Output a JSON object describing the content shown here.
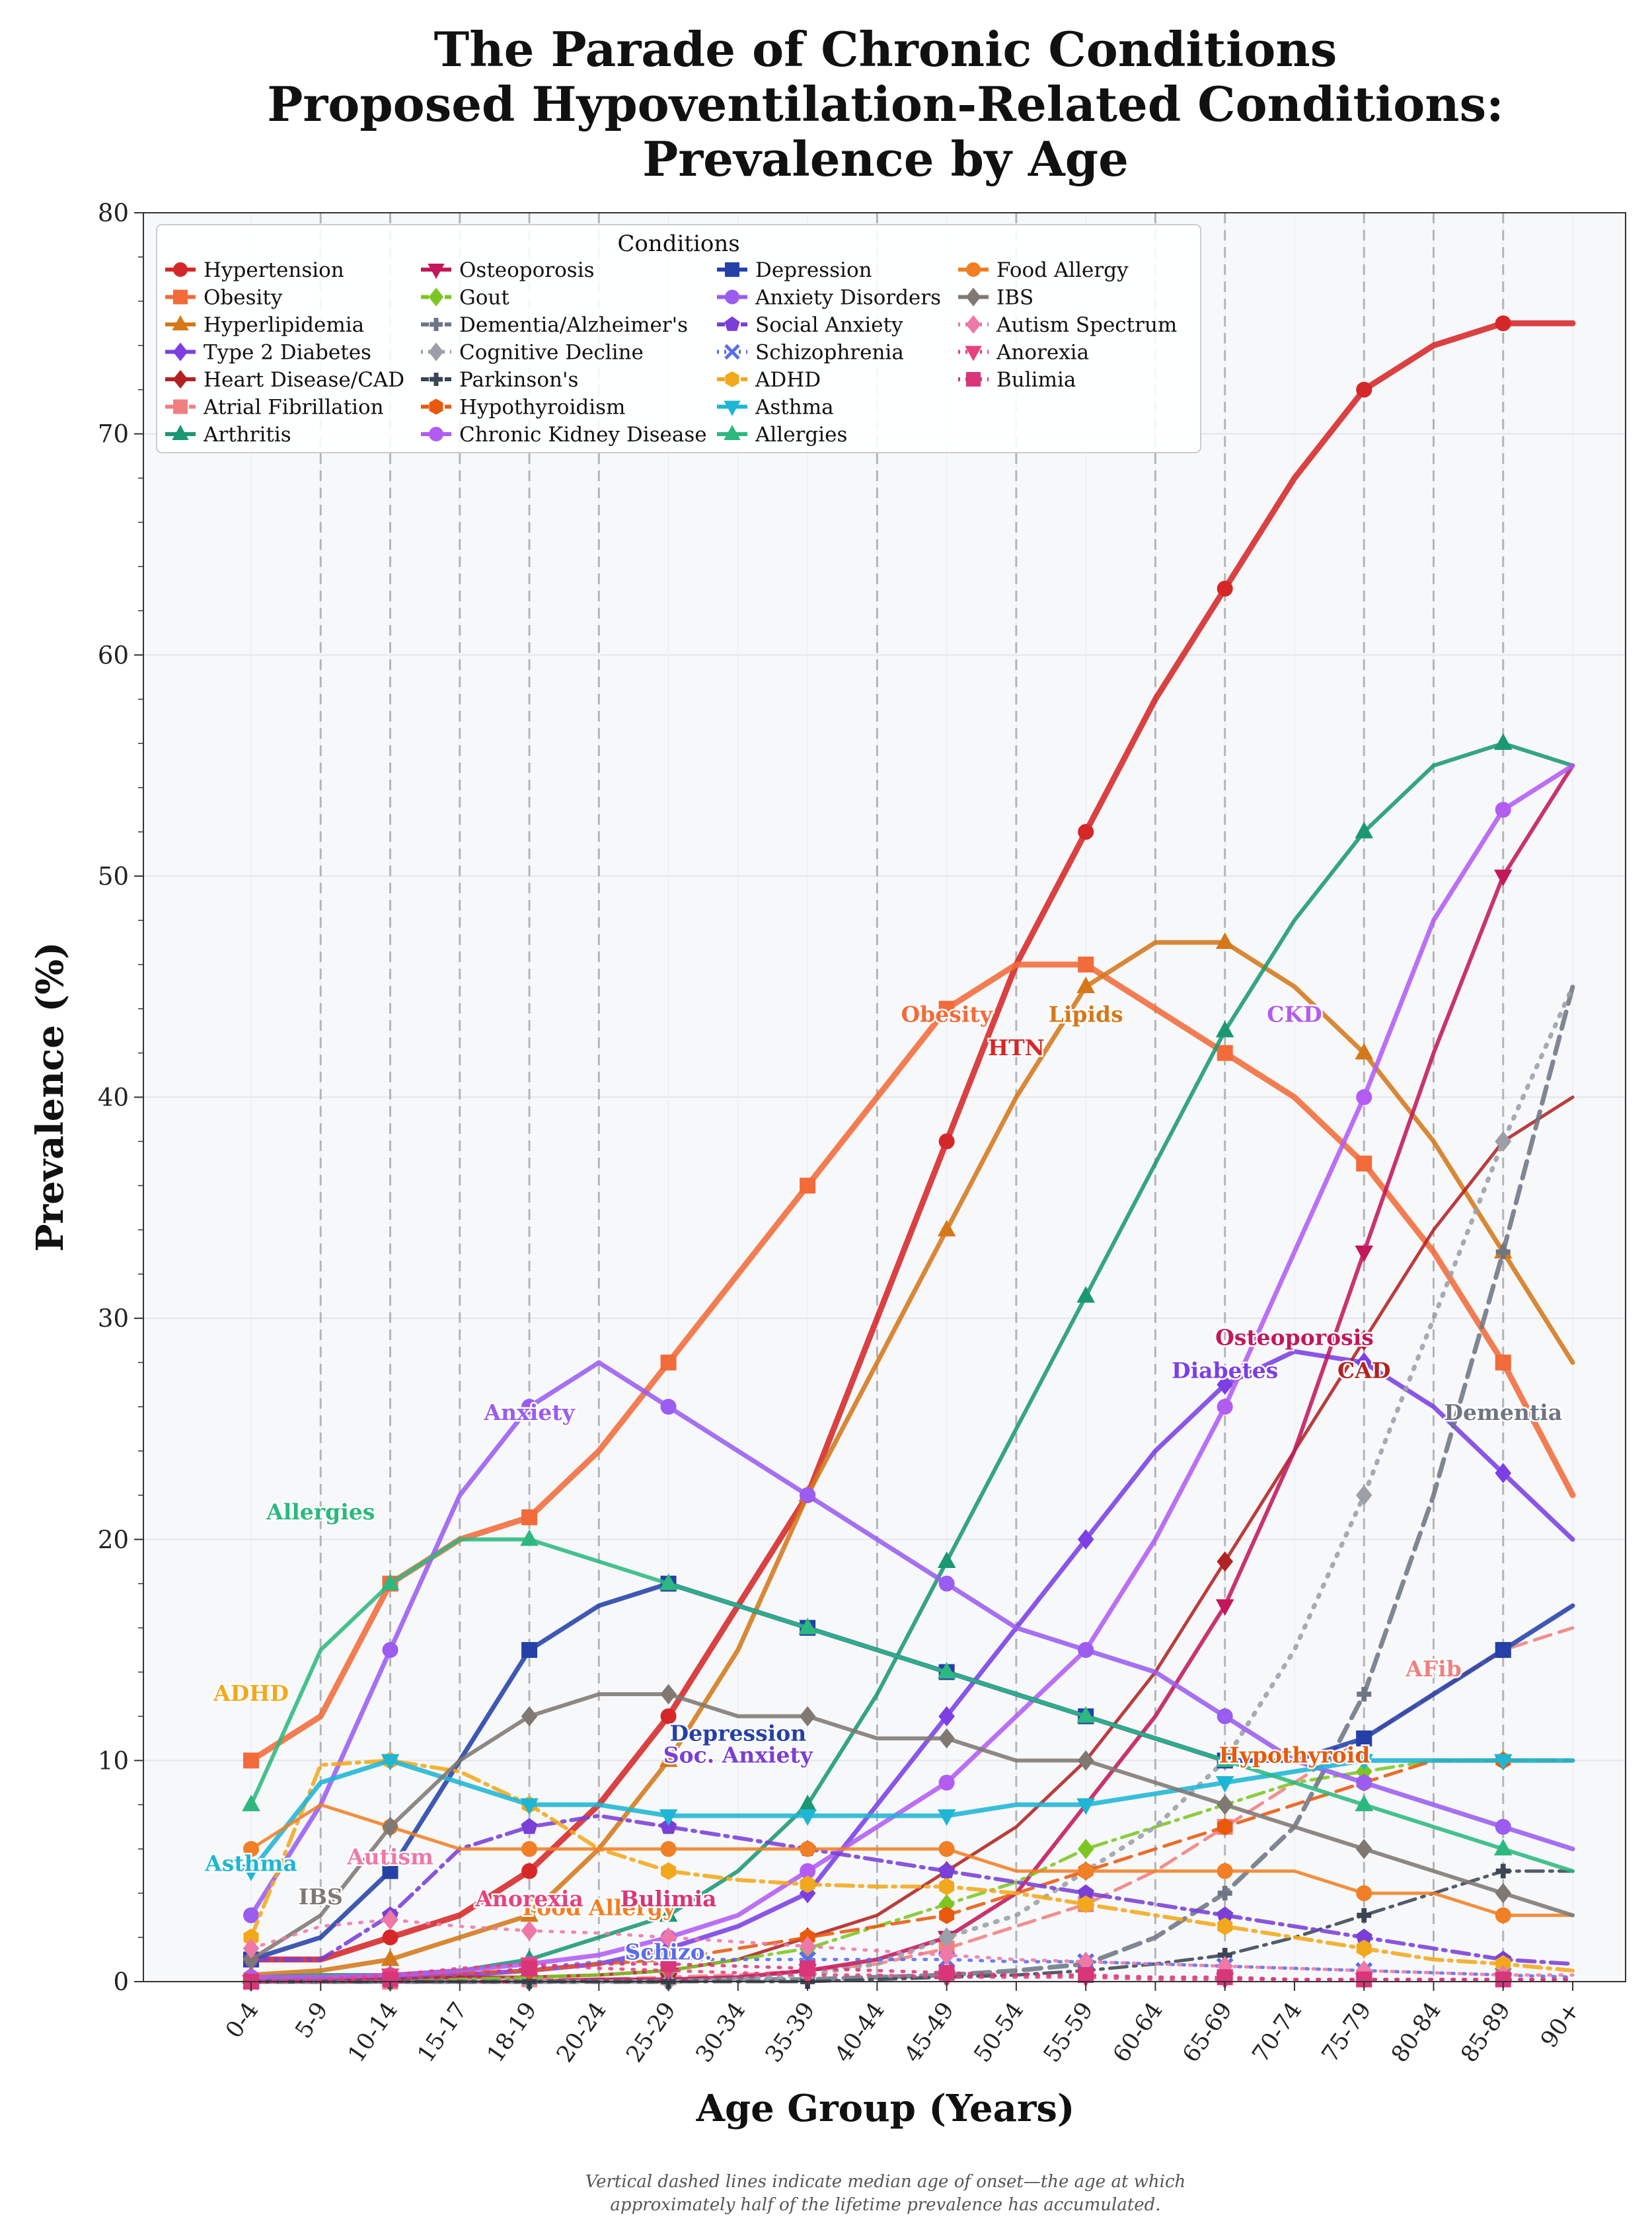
{
  "chart_data": {
    "type": "line",
    "title": [
      "The Parade of Chronic Conditions",
      "Proposed Hypoventilation-Related Conditions:",
      "Prevalence by Age"
    ],
    "xlabel": "Age Group (Years)",
    "ylabel": "Prevalence (%)",
    "ylim": [
      0,
      80
    ],
    "yticks": [
      0,
      10,
      20,
      30,
      40,
      50,
      60,
      70,
      80
    ],
    "grid": true,
    "legend_title": "Conditions",
    "legend_position": "top-left",
    "categories": [
      "0-4",
      "5-9",
      "10-14",
      "15-17",
      "18-19",
      "20-24",
      "25-29",
      "30-34",
      "35-39",
      "40-44",
      "45-49",
      "50-54",
      "55-59",
      "60-64",
      "65-69",
      "70-74",
      "75-79",
      "80-84",
      "85-89",
      "90+"
    ],
    "onset_lines": [
      "5-9",
      "10-14",
      "15-17",
      "18-19",
      "20-24",
      "40-44",
      "50-54",
      "60-64",
      "65-69",
      "75-79",
      "80-84",
      "85-89"
    ],
    "footnote": [
      "Vertical dashed lines indicate median age of onset—the age at which",
      "approximately half of the lifetime prevalence has accumulated."
    ],
    "series": [
      {
        "name": "Hypertension",
        "color": "#d62728",
        "marker": "circle",
        "dash": "solid",
        "width": 9,
        "values": [
          1,
          1,
          2,
          3,
          5,
          8,
          12,
          17,
          22,
          30,
          38,
          46,
          52,
          58,
          63,
          68,
          72,
          74,
          75,
          75
        ]
      },
      {
        "name": "Obesity",
        "color": "#f26b3a",
        "marker": "square",
        "dash": "solid",
        "width": 9,
        "values": [
          10,
          12,
          18,
          20,
          21,
          24,
          28,
          32,
          36,
          40,
          44,
          46,
          46,
          44,
          42,
          40,
          37,
          33,
          28,
          22
        ]
      },
      {
        "name": "Hyperlipidemia",
        "color": "#d4781a",
        "marker": "triangle-up",
        "dash": "solid",
        "width": 7,
        "values": [
          0.3,
          0.5,
          1,
          2,
          3,
          6,
          10,
          15,
          22,
          28,
          34,
          40,
          45,
          47,
          47,
          45,
          42,
          38,
          33,
          28
        ]
      },
      {
        "name": "Type 2 Diabetes",
        "color": "#7b3fe4",
        "marker": "diamond",
        "dash": "solid",
        "width": 7,
        "values": [
          0.1,
          0.2,
          0.2,
          0.3,
          0.5,
          0.8,
          1.5,
          2.5,
          4,
          8,
          12,
          16,
          20,
          24,
          27,
          28.5,
          28,
          26,
          23,
          20
        ]
      },
      {
        "name": "Heart Disease/CAD",
        "color": "#b22222",
        "marker": "diamond",
        "dash": "solid",
        "width": 5,
        "values": [
          0.1,
          0.1,
          0.1,
          0.2,
          0.2,
          0.3,
          0.5,
          1,
          2,
          3,
          5,
          7,
          10,
          14,
          19,
          24,
          29,
          34,
          38,
          40
        ]
      },
      {
        "name": "Atrial Fibrillation",
        "color": "#f08080",
        "marker": "square",
        "dash": "dashed",
        "width": 5,
        "values": [
          0,
          0,
          0,
          0,
          0.1,
          0.1,
          0.2,
          0.3,
          0.5,
          0.8,
          1.5,
          2.5,
          3.5,
          5,
          7,
          9,
          11,
          13,
          15,
          16
        ]
      },
      {
        "name": "Arthritis",
        "color": "#1a9873",
        "marker": "triangle-up",
        "dash": "solid",
        "width": 6,
        "values": [
          0.2,
          0.3,
          0.3,
          0.5,
          1,
          2,
          3,
          5,
          8,
          13,
          19,
          25,
          31,
          37,
          43,
          48,
          52,
          55,
          56,
          55
        ]
      },
      {
        "name": "Osteoporosis",
        "color": "#c2185b",
        "marker": "triangle-down",
        "dash": "solid",
        "width": 6,
        "values": [
          0,
          0,
          0,
          0,
          0,
          0.1,
          0.1,
          0.2,
          0.5,
          1,
          2,
          4,
          8,
          12,
          17,
          24,
          33,
          42,
          50,
          55
        ]
      },
      {
        "name": "Gout",
        "color": "#7cc622",
        "marker": "diamond",
        "dash": "dashdot",
        "width": 5,
        "values": [
          0,
          0,
          0,
          0.1,
          0.2,
          0.3,
          0.5,
          1,
          1.5,
          2.5,
          3.5,
          4.5,
          6,
          7,
          8,
          9,
          9.5,
          10,
          10,
          10
        ]
      },
      {
        "name": "Dementia/Alzheimer's",
        "color": "#6e7585",
        "marker": "plus",
        "dash": "dashed",
        "width": 7,
        "values": [
          0,
          0,
          0,
          0,
          0,
          0,
          0,
          0.1,
          0.1,
          0.2,
          0.3,
          0.5,
          0.8,
          2,
          4,
          7,
          13,
          22,
          33,
          45
        ]
      },
      {
        "name": "Cognitive Decline",
        "color": "#9a9fa8",
        "marker": "diamond",
        "dash": "dotted",
        "width": 7,
        "values": [
          0,
          0,
          0,
          0,
          0,
          0,
          0,
          0.1,
          0.3,
          0.8,
          2,
          3,
          5,
          7,
          10,
          15,
          22,
          30,
          38,
          45
        ]
      },
      {
        "name": "Parkinson's",
        "color": "#3c4554",
        "marker": "plus",
        "dash": "dashdot",
        "width": 5,
        "values": [
          0,
          0,
          0,
          0,
          0,
          0,
          0,
          0,
          0,
          0.1,
          0.2,
          0.3,
          0.5,
          0.8,
          1.2,
          2,
          3,
          4,
          5,
          5
        ]
      },
      {
        "name": "Hypothyroidism",
        "color": "#e8590c",
        "marker": "hexagon",
        "dash": "dashed",
        "width": 5,
        "values": [
          0.2,
          0.2,
          0.3,
          0.4,
          0.5,
          0.8,
          1,
          1.5,
          2,
          2.5,
          3,
          4,
          5,
          6,
          7,
          8,
          9,
          10,
          10,
          10
        ]
      },
      {
        "name": "Chronic Kidney Disease",
        "color": "#b25cf2",
        "marker": "circle",
        "dash": "solid",
        "width": 7,
        "values": [
          0.2,
          0.2,
          0.3,
          0.5,
          0.8,
          1.2,
          2,
          3,
          5,
          7,
          9,
          12,
          15,
          20,
          26,
          33,
          40,
          48,
          53,
          55
        ]
      },
      {
        "name": "Depression",
        "color": "#2541a8",
        "marker": "square",
        "dash": "solid",
        "width": 7,
        "values": [
          1,
          2,
          5,
          10,
          15,
          17,
          18,
          17,
          16,
          15,
          14,
          13,
          12,
          11,
          10,
          10,
          11,
          13,
          15,
          17
        ]
      },
      {
        "name": "Anxiety Disorders",
        "color": "#9b5cf0",
        "marker": "circle",
        "dash": "solid",
        "width": 7,
        "values": [
          3,
          8,
          15,
          22,
          26,
          28,
          26,
          24,
          22,
          20,
          18,
          16,
          15,
          14,
          12,
          10,
          9,
          8,
          7,
          6
        ]
      },
      {
        "name": "Social Anxiety",
        "color": "#7a3fd6",
        "marker": "pentagon",
        "dash": "dashdot",
        "width": 6,
        "values": [
          1,
          1,
          3,
          6,
          7,
          7.5,
          7,
          6.5,
          6,
          5.5,
          5,
          4.5,
          4,
          3.5,
          3,
          2.5,
          2,
          1.5,
          1,
          0.8
        ]
      },
      {
        "name": "Schizophrenia",
        "color": "#5a6ee8",
        "marker": "x",
        "dash": "dotted",
        "width": 5,
        "values": [
          0,
          0,
          0.1,
          0.3,
          0.6,
          0.9,
          1,
          1,
          1,
          1,
          1,
          0.9,
          0.9,
          0.8,
          0.7,
          0.6,
          0.5,
          0.4,
          0.3,
          0.2
        ]
      },
      {
        "name": "ADHD",
        "color": "#f2a81d",
        "marker": "hexagon",
        "dash": "dashdot",
        "width": 6,
        "values": [
          2,
          9.8,
          10,
          9.5,
          8,
          6,
          5,
          4.6,
          4.4,
          4.3,
          4.3,
          4,
          3.5,
          3,
          2.5,
          2,
          1.5,
          1,
          0.8,
          0.5
        ]
      },
      {
        "name": "Asthma",
        "color": "#1fb5d4",
        "marker": "triangle-down",
        "dash": "solid",
        "width": 7,
        "values": [
          5,
          9,
          10,
          9,
          8,
          8,
          7.5,
          7.5,
          7.5,
          7.5,
          7.5,
          8,
          8,
          8.5,
          9,
          9.5,
          10,
          10,
          10,
          10
        ]
      },
      {
        "name": "Allergies",
        "color": "#2cb87f",
        "marker": "triangle-up",
        "dash": "solid",
        "width": 6,
        "values": [
          8,
          15,
          18,
          20,
          20,
          19,
          18,
          17,
          16,
          15,
          14,
          13,
          12,
          11,
          10,
          9,
          8,
          7,
          6,
          5
        ]
      },
      {
        "name": "Food Allergy",
        "color": "#f07f25",
        "marker": "circle",
        "dash": "solid",
        "width": 5,
        "values": [
          6,
          8,
          7,
          6,
          6,
          6,
          6,
          6,
          6,
          6,
          6,
          5,
          5,
          5,
          5,
          5,
          4,
          4,
          3,
          3
        ]
      },
      {
        "name": "IBS",
        "color": "#7f7873",
        "marker": "diamond",
        "dash": "solid",
        "width": 6,
        "values": [
          1,
          3,
          7,
          10,
          12,
          13,
          13,
          12,
          12,
          11,
          11,
          10,
          10,
          9,
          8,
          7,
          6,
          5,
          4,
          3
        ]
      },
      {
        "name": "Autism Spectrum",
        "color": "#ee78a8",
        "marker": "diamond",
        "dash": "dotted",
        "width": 5,
        "values": [
          1.5,
          2.5,
          2.8,
          2.5,
          2.3,
          2.2,
          2,
          1.8,
          1.6,
          1.4,
          1.2,
          1,
          0.9,
          0.8,
          0.7,
          0.6,
          0.5,
          0.4,
          0.3,
          0.3
        ]
      },
      {
        "name": "Anorexia",
        "color": "#e6427d",
        "marker": "triangle-down",
        "dash": "dotted",
        "width": 5,
        "values": [
          0,
          0.1,
          0.3,
          0.6,
          0.8,
          0.6,
          0.5,
          0.4,
          0.3,
          0.3,
          0.2,
          0.2,
          0.2,
          0.1,
          0.1,
          0.1,
          0.1,
          0.1,
          0.1,
          0.1
        ]
      },
      {
        "name": "Bulimia",
        "color": "#d83679",
        "marker": "square",
        "dash": "dotted",
        "width": 5,
        "values": [
          0,
          0,
          0.1,
          0.3,
          0.6,
          0.8,
          0.8,
          0.7,
          0.6,
          0.5,
          0.4,
          0.3,
          0.3,
          0.2,
          0.2,
          0.1,
          0.1,
          0.1,
          0.1,
          0.1
        ]
      }
    ],
    "annotations": [
      {
        "text": "Obesity",
        "color": "#f26b3a",
        "x": "45-49",
        "y": 43.4
      },
      {
        "text": "HTN",
        "color": "#d62728",
        "x": "50-54",
        "y": 41.9
      },
      {
        "text": "Lipids",
        "color": "#d4781a",
        "x": "55-59",
        "y": 43.4
      },
      {
        "text": "CKD",
        "color": "#b25cf2",
        "x": "70-74",
        "y": 43.4
      },
      {
        "text": "Osteoporosis",
        "color": "#c2185b",
        "x": "70-74",
        "y": 28.8
      },
      {
        "text": "Diabetes",
        "color": "#7b3fe4",
        "x": "65-69",
        "y": 27.3
      },
      {
        "text": "CAD",
        "color": "#b22222",
        "x": "75-79",
        "y": 27.3
      },
      {
        "text": "Dementia",
        "color": "#6e7585",
        "x": "85-89",
        "y": 25.4
      },
      {
        "text": "Anxiety",
        "color": "#9b5cf0",
        "x": "18-19",
        "y": 25.4
      },
      {
        "text": "Allergies",
        "color": "#2cb87f",
        "x": "5-9",
        "y": 20.9
      },
      {
        "text": "ADHD",
        "color": "#f2a81d",
        "x": "0-4",
        "y": 12.7
      },
      {
        "text": "AFib",
        "color": "#f08080",
        "x": "80-84",
        "y": 13.8
      },
      {
        "text": "Depression",
        "color": "#2541a8",
        "x": "30-34",
        "y": 10.9
      },
      {
        "text": "Soc. Anxiety",
        "color": "#7a3fd6",
        "x": "30-34",
        "y": 9.9
      },
      {
        "text": "Hypothyroid",
        "color": "#e8590c",
        "x": "70-74",
        "y": 9.9
      },
      {
        "text": "Asthma",
        "color": "#1fb5d4",
        "x": "0-4",
        "y": 5.0
      },
      {
        "text": "Autism",
        "color": "#ee78a8",
        "x": "10-14",
        "y": 5.3
      },
      {
        "text": "IBS",
        "color": "#7f7873",
        "x": "5-9",
        "y": 3.5
      },
      {
        "text": "Food Allergy",
        "color": "#f07f25",
        "x": "20-24",
        "y": 3.0
      },
      {
        "text": "Anorexia",
        "color": "#e6427d",
        "x": "18-19",
        "y": 3.4
      },
      {
        "text": "Bulimia",
        "color": "#d83679",
        "x": "25-29",
        "y": 3.4
      },
      {
        "text": "Schizo.",
        "color": "#5a6ee8",
        "x": "25-29",
        "y": 1.0
      }
    ]
  }
}
